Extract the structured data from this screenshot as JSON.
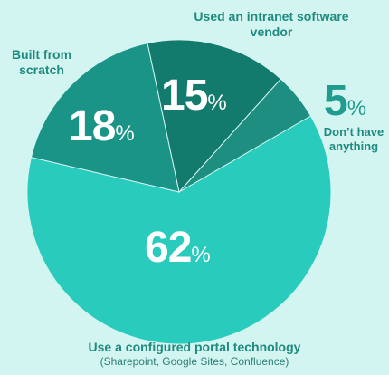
{
  "chart_data": {
    "type": "pie",
    "slices": [
      {
        "label": "Use a configured portal technology",
        "sublabel": "(Sharepoint, Google Sites, Confluence)",
        "value": 62,
        "color": "#29ccbc"
      },
      {
        "label": "Built from scratch",
        "value": 18,
        "color": "#1a9486"
      },
      {
        "label": "Used an intranet software vendor",
        "value": 15,
        "color": "#137a6e"
      },
      {
        "label": "Don’t have anything",
        "value": 5,
        "color": "#1d8e80"
      }
    ],
    "pct_symbol": "%"
  }
}
